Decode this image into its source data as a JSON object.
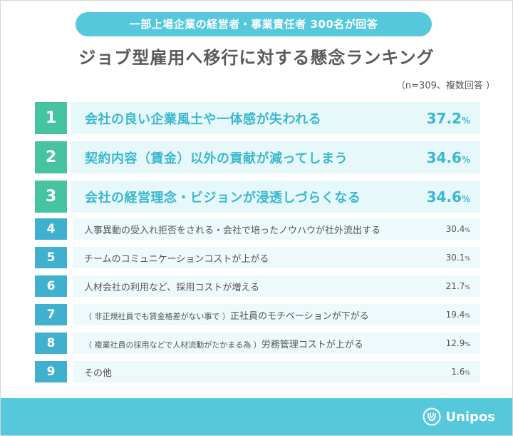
{
  "header": {
    "badge": "一部上場企業の経営者・事業責任者 300名が回答",
    "title": "ジョブ型雇用へ移行に対する懸念ランキング",
    "note": "（n=309、複数回答 ）"
  },
  "chart_data": {
    "type": "table",
    "title": "ジョブ型雇用へ移行に対する懸念ランキング",
    "unit": "%",
    "rows": [
      {
        "rank": "1",
        "prefix": "",
        "label": "会社の良い企業風土や一体感が失われる",
        "value": 37.2,
        "value_text": "37.2"
      },
      {
        "rank": "2",
        "prefix": "",
        "label": "契約内容（賃金）以外の貢献が減ってしまう",
        "value": 34.6,
        "value_text": "34.6"
      },
      {
        "rank": "3",
        "prefix": "",
        "label": "会社の経営理念・ビジョンが浸透しづらくなる",
        "value": 34.6,
        "value_text": "34.6"
      },
      {
        "rank": "4",
        "prefix": "",
        "label": "人事異動の受入れ拒否をされる・会社で培ったノウハウが社外流出する",
        "value": 30.4,
        "value_text": "30.4"
      },
      {
        "rank": "5",
        "prefix": "",
        "label": "チームのコミュニケーションコストが上がる",
        "value": 30.1,
        "value_text": "30.1"
      },
      {
        "rank": "6",
        "prefix": "",
        "label": "人材会社の利用など、採用コストが増える",
        "value": 21.7,
        "value_text": "21.7"
      },
      {
        "rank": "7",
        "prefix": "（ 非正規社員でも賃金格差がない事で ）",
        "label": "正社員のモチベーションが下がる",
        "value": 19.4,
        "value_text": "19.4"
      },
      {
        "rank": "8",
        "prefix": "（ 複業社員の採用などで人材流動がたかまる為 ）",
        "label": "労務管理コストが上がる",
        "value": 12.9,
        "value_text": "12.9"
      },
      {
        "rank": "9",
        "prefix": "",
        "label": "その他",
        "value": 1.6,
        "value_text": "1.6"
      }
    ]
  },
  "footer": {
    "logo_text": "Unipos",
    "logo_icon": "unipos-logo-icon"
  }
}
